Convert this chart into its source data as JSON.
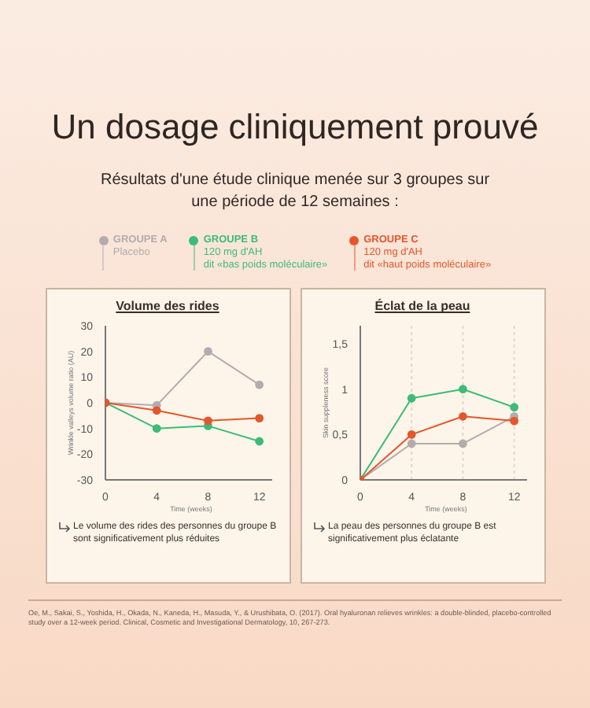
{
  "chart_data": [
    {
      "type": "line",
      "title": "Volume des rides",
      "xlabel": "Time (weeks)",
      "ylabel": "Wrinkle valleys volume ratio (AU)",
      "annotations": [
        "Un dosage cliniquement prouvé",
        "Résultats d'une étude clinique menée sur 3 groupes sur une période de 12 semaines :",
        "Le volume des rides des personnes du groupe B sont significativement plus réduites"
      ],
      "x": [
        0,
        4,
        8,
        12
      ],
      "xlim": [
        0,
        13
      ],
      "xticks": [
        0,
        4,
        8,
        12
      ],
      "ylim": [
        -30,
        30
      ],
      "yticks": [
        -30,
        -20,
        -10,
        0,
        10,
        20,
        30
      ],
      "series": [
        {
          "name": "GROUPE A\nPlacebo",
          "color": "#b3acae",
          "values": [
            0,
            -1,
            20,
            7
          ]
        },
        {
          "name": "GROUPE B\n120 mg d'AH\ndit «bas poids moléculaire»",
          "color": "#3dbb78",
          "values": [
            0,
            -10,
            -9,
            -15
          ]
        },
        {
          "name": "GROUPE C\n120 mg d'AH\ndit «haut poids moléculaire»",
          "color": "#e5562b",
          "values": [
            0,
            -3,
            -7,
            -6
          ]
        }
      ],
      "legend": "top",
      "marker": "circle",
      "line_style": "solid",
      "grid": false
    },
    {
      "type": "line",
      "title": "Éclat de la peau",
      "xlabel": "Time (weeks)",
      "ylabel": "Skin suppleness score",
      "annotations": [
        "La peau des personnes du groupe B est significativement plus éclatante",
        "Oe, M., Sakai, S., Yoshida, H., Okada, N., Kaneda, H., Masuda, Y., & Urushibata, O. (2017). Oral hyaluronan relieves wrinkles: a double-blinded, placebo-controlled study over a 12-week period. Clinical, Cosmetic and Investigational Dermatology, 10, 267-273."
      ],
      "x": [
        0,
        4,
        8,
        12
      ],
      "xlim": [
        0,
        13
      ],
      "xticks": [
        0,
        4,
        8,
        12
      ],
      "ylim": [
        0,
        1.7
      ],
      "yticks": [
        0,
        {
          "value": 0.5,
          "label": "0,5"
        },
        1,
        {
          "value": 1.5,
          "label": "1,5"
        }
      ],
      "series": [
        {
          "color": "#b3acae",
          "values": [
            0,
            0.4,
            0.4,
            0.7
          ]
        },
        {
          "color": "#3dbb78",
          "values": [
            0,
            0.9,
            1.0,
            0.8
          ]
        },
        {
          "color": "#e5562b",
          "values": [
            0,
            0.5,
            0.7,
            0.65
          ]
        }
      ],
      "marker": "circle",
      "line_style": "solid",
      "grid": "x"
    }
  ]
}
